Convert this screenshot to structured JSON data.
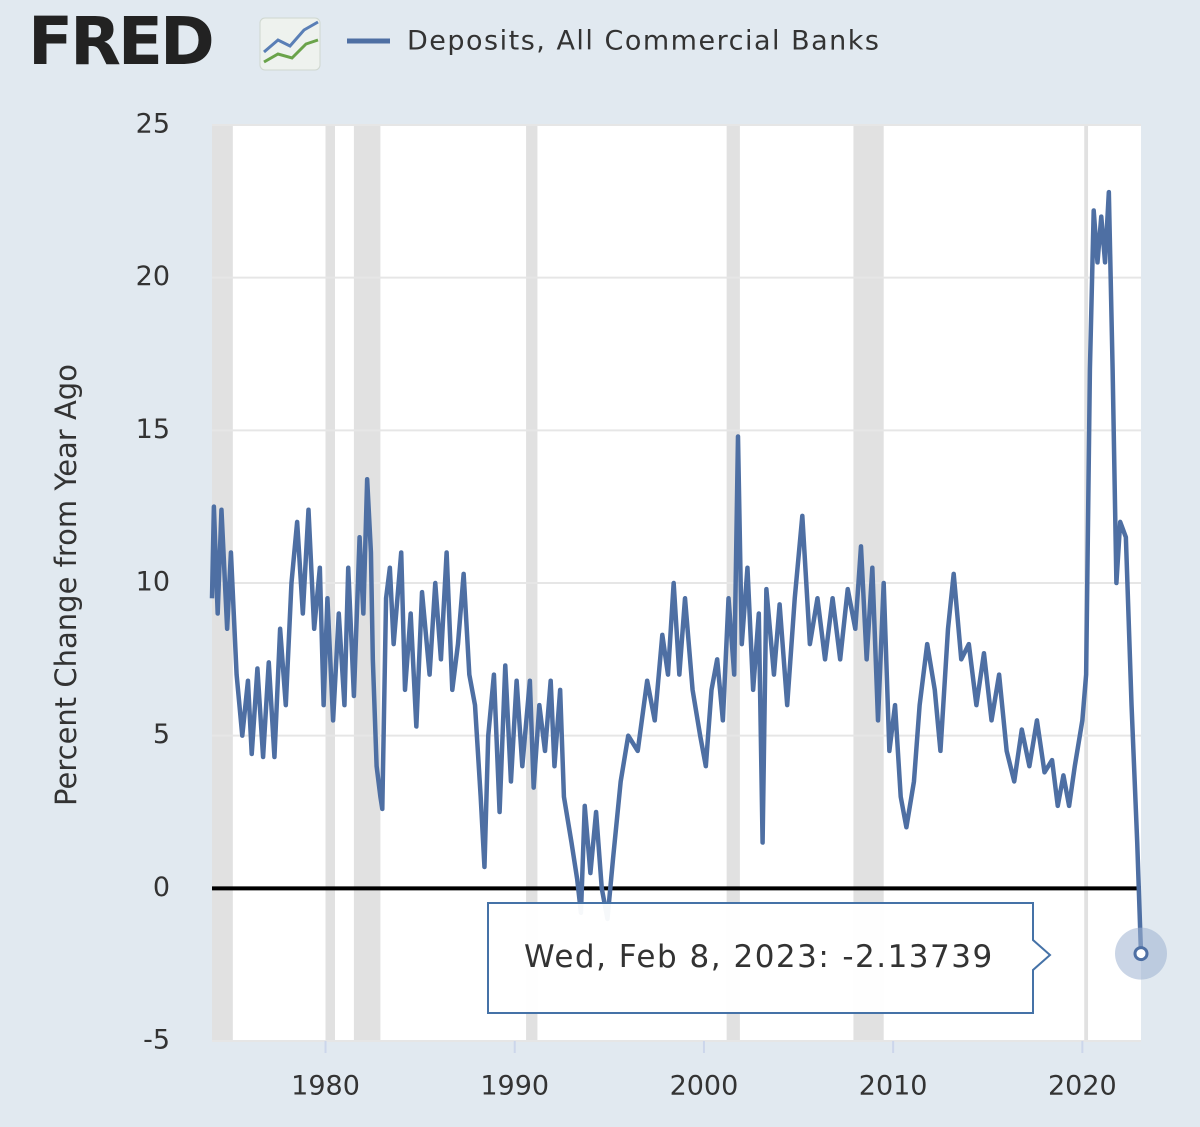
{
  "logo": "FRED",
  "chart_data": {
    "type": "line",
    "y_label": "Percent Change from Year Ago",
    "xlim": [
      1974.0,
      2023.1
    ],
    "xticks": [
      1980,
      1990,
      2000,
      2010,
      2020
    ],
    "ylim": [
      -5,
      25
    ],
    "yticks": [
      -5,
      0,
      5,
      10,
      15,
      20,
      25
    ],
    "grid": true,
    "recessions": [
      [
        1974.0,
        1975.1
      ],
      [
        1980.0,
        1980.5
      ],
      [
        1981.5,
        1982.9
      ],
      [
        1990.6,
        1991.2
      ],
      [
        2001.2,
        2001.9
      ],
      [
        2007.9,
        2009.5
      ],
      [
        2020.1,
        2020.3
      ]
    ],
    "tooltip_label": "Wed, Feb 8, 2023:",
    "x": [
      1974.0,
      1974.1,
      1974.3,
      1974.5,
      1974.8,
      1975.0,
      1975.3,
      1975.6,
      1975.9,
      1976.1,
      1976.4,
      1976.7,
      1977.0,
      1977.3,
      1977.6,
      1977.9,
      1978.2,
      1978.5,
      1978.8,
      1979.1,
      1979.4,
      1979.7,
      1979.9,
      1980.1,
      1980.4,
      1980.7,
      1981.0,
      1981.2,
      1981.5,
      1981.8,
      1982.0,
      1982.2,
      1982.4,
      1982.5,
      1982.7,
      1982.9,
      1983.0,
      1983.2,
      1983.4,
      1983.6,
      1984.0,
      1984.2,
      1984.5,
      1984.8,
      1985.1,
      1985.5,
      1985.8,
      1986.1,
      1986.4,
      1986.7,
      1987.0,
      1987.3,
      1987.6,
      1987.9,
      1988.2,
      1988.4,
      1988.6,
      1988.9,
      1989.2,
      1989.5,
      1989.8,
      1990.1,
      1990.4,
      1990.8,
      1991.0,
      1991.3,
      1991.6,
      1991.9,
      1992.1,
      1992.4,
      1992.6,
      1993.0,
      1993.3,
      1993.5,
      1993.7,
      1994.0,
      1994.3,
      1994.6,
      1994.9,
      1995.2,
      1995.6,
      1996.0,
      1996.5,
      1997.0,
      1997.4,
      1997.8,
      1998.1,
      1998.4,
      1998.7,
      1999.0,
      1999.4,
      1999.8,
      2000.1,
      2000.4,
      2000.7,
      2001.0,
      2001.3,
      2001.6,
      2001.8,
      2002.0,
      2002.3,
      2002.6,
      2002.9,
      2003.1,
      2003.3,
      2003.7,
      2004.0,
      2004.4,
      2004.8,
      2005.2,
      2005.6,
      2006.0,
      2006.4,
      2006.8,
      2007.2,
      2007.6,
      2008.0,
      2008.3,
      2008.6,
      2008.9,
      2009.2,
      2009.5,
      2009.8,
      2010.1,
      2010.4,
      2010.7,
      2011.1,
      2011.4,
      2011.8,
      2012.2,
      2012.5,
      2012.9,
      2013.2,
      2013.6,
      2014.0,
      2014.4,
      2014.8,
      2015.2,
      2015.6,
      2016.0,
      2016.4,
      2016.8,
      2017.2,
      2017.6,
      2018.0,
      2018.4,
      2018.7,
      2019.0,
      2019.3,
      2019.6,
      2020.0,
      2020.2,
      2020.4,
      2020.6,
      2020.8,
      2021.0,
      2021.2,
      2021.4,
      2021.6,
      2021.8,
      2022.0,
      2022.3,
      2022.6,
      2022.9,
      2023.1
    ],
    "series": [
      {
        "name": "Deposits, All Commercial Banks",
        "color": "#4e6fa3",
        "values": [
          9.5,
          12.5,
          9,
          12.4,
          8.5,
          11,
          7,
          5,
          6.8,
          4.4,
          7.2,
          4.3,
          7.4,
          4.3,
          8.5,
          6,
          10,
          12,
          9,
          12.4,
          8.5,
          10.5,
          6,
          9.5,
          5.5,
          9,
          6,
          10.5,
          6.3,
          11.5,
          9,
          13.4,
          11,
          7.5,
          4,
          3,
          2.6,
          9.5,
          10.5,
          8,
          11,
          6.5,
          9,
          5.3,
          9.7,
          7,
          10,
          7.5,
          11,
          6.5,
          8,
          10.3,
          7,
          6,
          3,
          0.7,
          5,
          7,
          2.5,
          7.3,
          3.5,
          6.8,
          4,
          6.8,
          3.3,
          6,
          4.5,
          6.8,
          4,
          6.5,
          3,
          1.5,
          0.3,
          -0.8,
          2.7,
          0.5,
          2.5,
          0,
          -1,
          1,
          3.5,
          5,
          4.5,
          6.8,
          5.5,
          8.3,
          7,
          10,
          7,
          9.5,
          6.5,
          5,
          4,
          6.5,
          7.5,
          5.5,
          9.5,
          7,
          14.8,
          8,
          10.5,
          6.5,
          9,
          1.5,
          9.8,
          7,
          9.3,
          6,
          9.5,
          12.2,
          8,
          9.5,
          7.5,
          9.5,
          7.5,
          9.8,
          8.5,
          11.2,
          7.5,
          10.5,
          5.5,
          10,
          4.5,
          6,
          3,
          2,
          3.5,
          6,
          8,
          6.5,
          4.5,
          8.5,
          10.3,
          7.5,
          8,
          6,
          7.7,
          5.5,
          7,
          4.5,
          3.5,
          5.2,
          4,
          5.5,
          3.8,
          4.2,
          2.7,
          3.7,
          2.7,
          4,
          5.5,
          7,
          17,
          22.2,
          20.5,
          22,
          20.5,
          22.8,
          17,
          10,
          12,
          11.5,
          6,
          1.5,
          -2.13739
        ]
      }
    ]
  }
}
